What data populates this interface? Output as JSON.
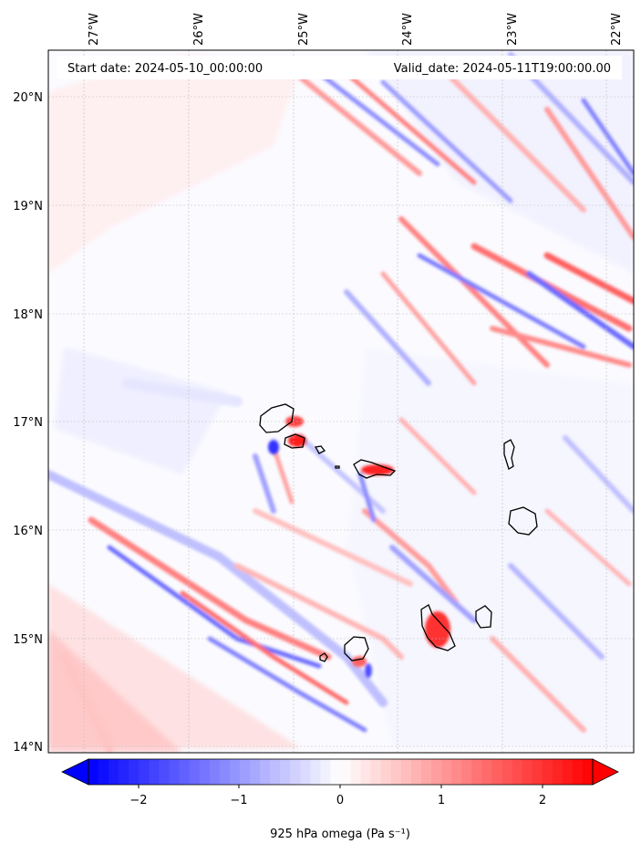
{
  "header": {
    "start_date": "Start date: 2024-05-10_00:00:00",
    "valid_date": "Valid_date: 2024-05-11T19:00:00.00"
  },
  "map": {
    "lon_labels": [
      "27°W",
      "26°W",
      "25°W",
      "24°W",
      "23°W",
      "22°W"
    ],
    "lat_labels": [
      "20°N",
      "19°N",
      "18°N",
      "17°N",
      "16°N",
      "15°N",
      "14°N"
    ],
    "lon_range": [
      -27.33,
      -21.77
    ],
    "lat_range": [
      13.95,
      20.42
    ],
    "gridlines": true,
    "region": "Cabo Verde archipelago"
  },
  "colorbar": {
    "label": "925 hPa omega (Pa s⁻¹)",
    "ticks": [
      "−2",
      "−1",
      "0",
      "1",
      "2"
    ],
    "tick_values": [
      -2,
      -1,
      0,
      1,
      2
    ],
    "range": [
      -2.6,
      2.6
    ],
    "extend": "both",
    "colormap": "bwr",
    "low_color": "#0000ff",
    "mid_color": "#ffffff",
    "high_color": "#ff0000"
  },
  "chart_data": {
    "type": "heatmap",
    "title": "",
    "variable": "925 hPa omega",
    "units": "Pa s⁻¹",
    "ranges": [
      -2.6,
      2.6
    ]
  }
}
